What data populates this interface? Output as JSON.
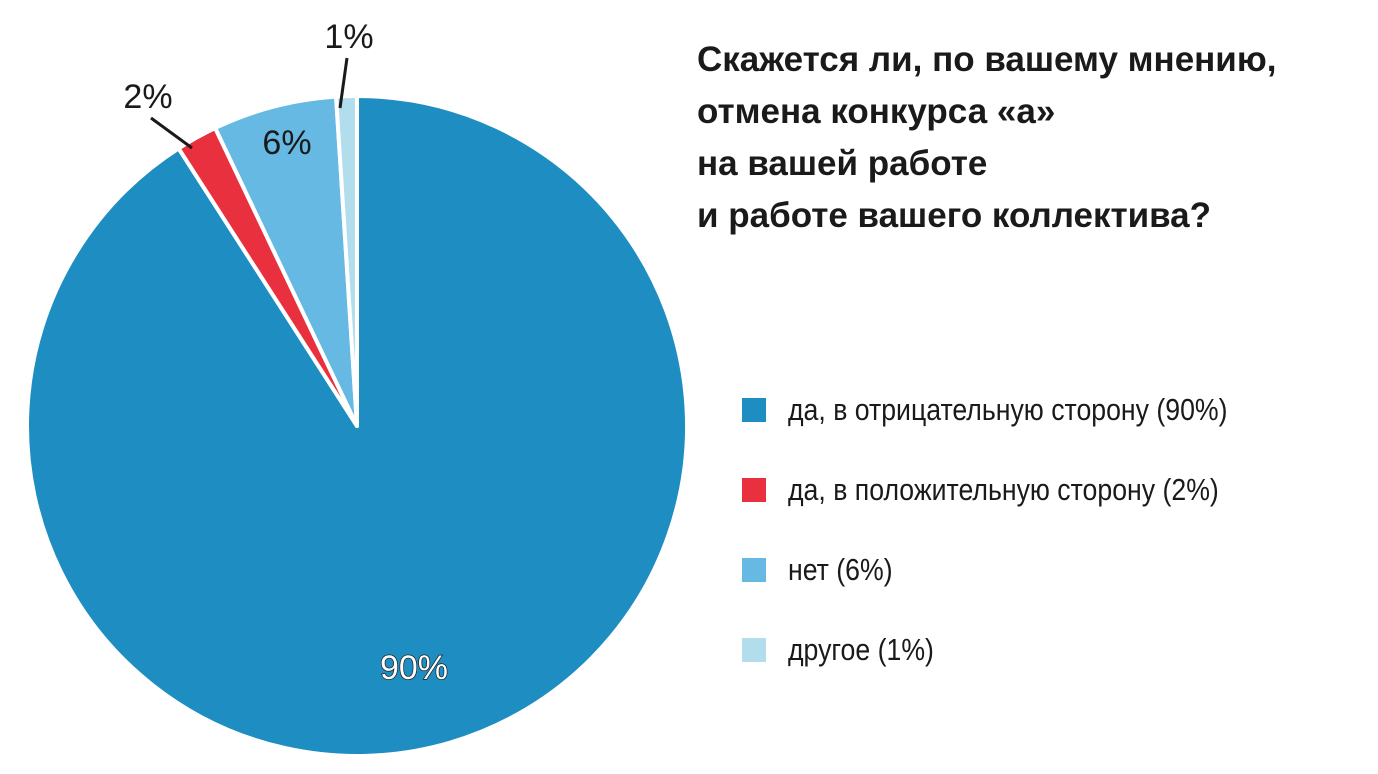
{
  "chart_data": {
    "type": "pie",
    "title_lines": [
      "Скажется ли, по вашему мнению,",
      "отмена конкурса «а»",
      "на вашей работе",
      "и работе вашего коллектива?"
    ],
    "slices": [
      {
        "label": "да, в отрицательную сторону (90%)",
        "value": 90,
        "data_label": "90%",
        "color": "#1e8dc1"
      },
      {
        "label": "да, в положительную сторону (2%)",
        "value": 2,
        "data_label": "2%",
        "color": "#e8303f"
      },
      {
        "label": "нет (6%)",
        "value": 6,
        "data_label": "6%",
        "color": "#66b9e3"
      },
      {
        "label": "другое (1%)",
        "value": 1,
        "data_label": "1%",
        "color": "#b2ddec"
      }
    ],
    "legend_position": "right"
  }
}
